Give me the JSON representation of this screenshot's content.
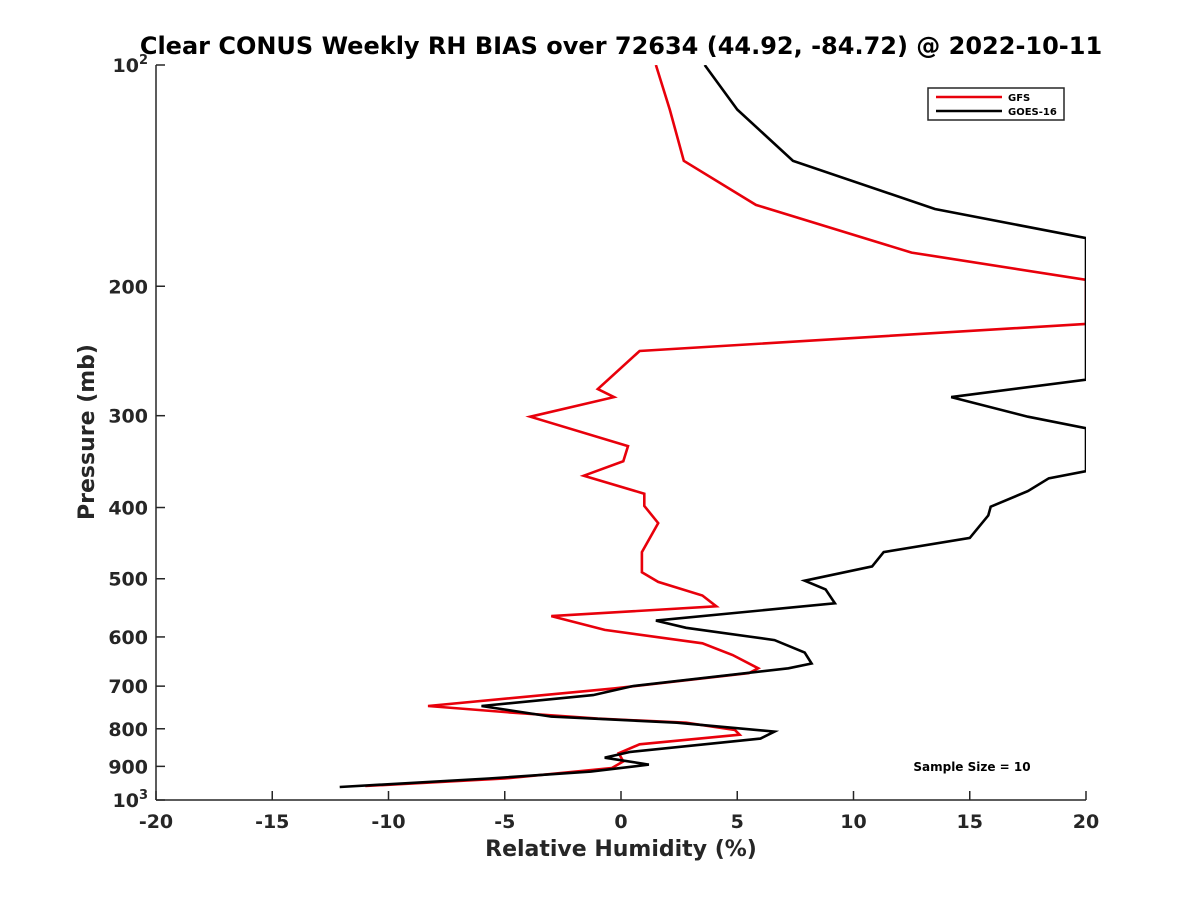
{
  "chart_data": {
    "type": "line",
    "title": "Clear CONUS Weekly RH BIAS over 72634 (44.92, -84.72) @ 2022-10-11",
    "xlabel": "Relative Humidity (%)",
    "ylabel": "Pressure (mb)",
    "xlim": [
      -20,
      20
    ],
    "ylim": [
      100,
      1000
    ],
    "yscale": "log",
    "y_reversed": true,
    "grid": false,
    "legend_position": "top-right",
    "x_ticks": [
      "-20",
      "-15",
      "-10",
      "-5",
      "0",
      "5",
      "10",
      "15",
      "20"
    ],
    "x_tick_values": [
      -20,
      -15,
      -10,
      -5,
      0,
      5,
      10,
      15,
      20
    ],
    "y_ticks": [
      {
        "value": 100,
        "base": "10",
        "exp": "2"
      },
      {
        "value": 200,
        "label": "200"
      },
      {
        "value": 300,
        "label": "300"
      },
      {
        "value": 400,
        "label": "400"
      },
      {
        "value": 500,
        "label": "500"
      },
      {
        "value": 600,
        "label": "600"
      },
      {
        "value": 700,
        "label": "700"
      },
      {
        "value": 800,
        "label": "800"
      },
      {
        "value": 900,
        "label": "900"
      },
      {
        "value": 1000,
        "base": "10",
        "exp": "3"
      }
    ],
    "annotation": "Sample Size = 10",
    "series": [
      {
        "name": "GFS",
        "color": "#e8000b",
        "points": [
          [
            1.5,
            100
          ],
          [
            2.1,
            115
          ],
          [
            2.7,
            135
          ],
          [
            5.8,
            155
          ],
          [
            12.5,
            180
          ],
          [
            20,
            196
          ],
          [
            20,
            225
          ],
          [
            0.8,
            245
          ],
          [
            -1.0,
            276
          ],
          [
            -0.3,
            283
          ],
          [
            -3.9,
            301
          ],
          [
            0.3,
            330
          ],
          [
            0.1,
            346
          ],
          [
            -1.6,
            362
          ],
          [
            1.0,
            383
          ],
          [
            1.0,
            398
          ],
          [
            1.6,
            420
          ],
          [
            0.9,
            460
          ],
          [
            0.9,
            490
          ],
          [
            1.6,
            505
          ],
          [
            3.5,
            527
          ],
          [
            4.1,
            545
          ],
          [
            -3.0,
            562
          ],
          [
            -0.7,
            587
          ],
          [
            3.5,
            612
          ],
          [
            4.8,
            635
          ],
          [
            5.9,
            662
          ],
          [
            5.5,
            672
          ],
          [
            -0.3,
            705
          ],
          [
            -8.3,
            745
          ],
          [
            -4.8,
            760
          ],
          [
            -1.0,
            775
          ],
          [
            2.8,
            785
          ],
          [
            4.9,
            803
          ],
          [
            5.1,
            815
          ],
          [
            0.8,
            840
          ],
          [
            -0.1,
            864
          ],
          [
            0.1,
            886
          ],
          [
            -0.4,
            905
          ],
          [
            -5.0,
            935
          ],
          [
            -11.0,
            957
          ]
        ]
      },
      {
        "name": "GOES-16",
        "color": "#000000",
        "points": [
          [
            3.6,
            100
          ],
          [
            5.0,
            115
          ],
          [
            7.4,
            135
          ],
          [
            13.5,
            157
          ],
          [
            20,
            172
          ],
          [
            20,
            268
          ],
          [
            14.2,
            283
          ],
          [
            17.5,
            301
          ],
          [
            20,
            312
          ],
          [
            20,
            357
          ],
          [
            18.4,
            365
          ],
          [
            17.5,
            380
          ],
          [
            15.9,
            399
          ],
          [
            15.8,
            410
          ],
          [
            15.0,
            440
          ],
          [
            11.3,
            460
          ],
          [
            10.8,
            481
          ],
          [
            7.9,
            503
          ],
          [
            8.8,
            517
          ],
          [
            9.2,
            540
          ],
          [
            1.5,
            570
          ],
          [
            2.8,
            583
          ],
          [
            6.6,
            606
          ],
          [
            7.9,
            630
          ],
          [
            8.2,
            652
          ],
          [
            7.2,
            662
          ],
          [
            0.5,
            700
          ],
          [
            -1.2,
            720
          ],
          [
            -6.0,
            745
          ],
          [
            -3.0,
            770
          ],
          [
            2.4,
            785
          ],
          [
            6.6,
            807
          ],
          [
            6.0,
            825
          ],
          [
            0.4,
            860
          ],
          [
            -0.7,
            876
          ],
          [
            1.2,
            895
          ],
          [
            -1.3,
            915
          ],
          [
            -5.7,
            935
          ],
          [
            -12.1,
            960
          ]
        ]
      }
    ]
  }
}
